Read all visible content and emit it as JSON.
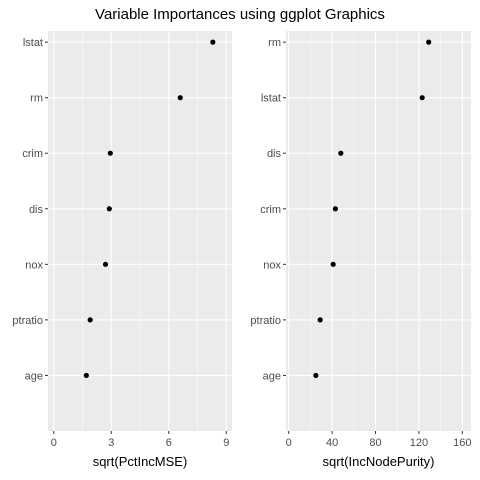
{
  "chart_data": [
    {
      "type": "scatter",
      "title": "Variable Importances using ggplot Graphics",
      "xlabel": "sqrt(PctIncMSE)",
      "ylabel": "",
      "categories": [
        "age",
        "ptratio",
        "nox",
        "dis",
        "crim",
        "rm",
        "lstat"
      ],
      "values": [
        1.7,
        1.9,
        2.7,
        2.9,
        2.95,
        6.6,
        8.3
      ],
      "xlim": [
        -0.3,
        9.3
      ],
      "xticks": [
        0,
        3,
        6,
        9
      ],
      "grid": true
    },
    {
      "type": "scatter",
      "xlabel": "sqrt(IncNodePurity)",
      "ylabel": "",
      "categories": [
        "age",
        "ptratio",
        "nox",
        "crim",
        "dis",
        "lstat",
        "rm"
      ],
      "values": [
        25,
        29,
        41,
        43,
        48,
        123,
        129
      ],
      "xlim": [
        -2.5,
        168
      ],
      "xticks": [
        0,
        40,
        80,
        120,
        160
      ],
      "grid": true
    }
  ],
  "colors": {
    "panel_bg": "#ebebeb",
    "grid_major": "#ffffff",
    "point": "#000000",
    "tick_text": "#4d4d4d"
  }
}
